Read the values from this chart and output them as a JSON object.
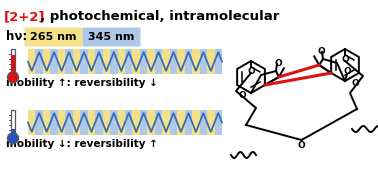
{
  "title_red": "[2+2]",
  "title_black": ", photochemical, intramolecular",
  "hv_label": "hν:",
  "box1_text": "265 nm",
  "box1_color": "#f5e08a",
  "box2_text": "345 nm",
  "box2_color": "#b0c8e8",
  "wave_color": "#3a6db5",
  "bg_yellow": "#f5e08a",
  "bg_blue": "#b0c8e8",
  "therm_hot": "#dd1111",
  "therm_cold": "#2255bb",
  "label_hot": "mobility ↑: reversibility ↓",
  "label_cold": "mobility ↓: reversibility ↑",
  "red_bond": "#dd1111",
  "fig_bg": "#ffffff",
  "num_periods": 13
}
